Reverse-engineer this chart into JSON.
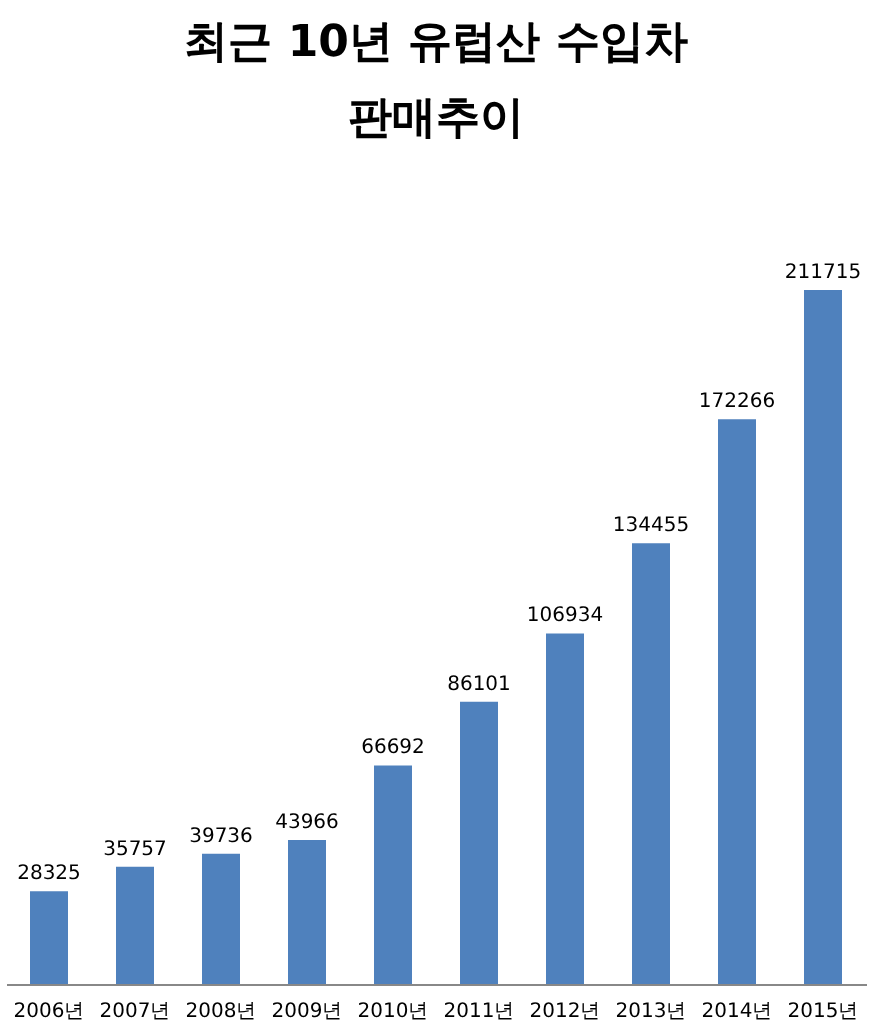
{
  "chart_data": {
    "type": "bar",
    "title": "최근 10년 유럽산 수입차\n판매추이",
    "categories": [
      "2006년",
      "2007년",
      "2008년",
      "2009년",
      "2010년",
      "2011년",
      "2012년",
      "2013년",
      "2014년",
      "2015년"
    ],
    "values": [
      28325,
      35757,
      39736,
      43966,
      66692,
      86101,
      106934,
      134455,
      172266,
      211715
    ],
    "color": "#4f81bd",
    "data_labels": true
  }
}
